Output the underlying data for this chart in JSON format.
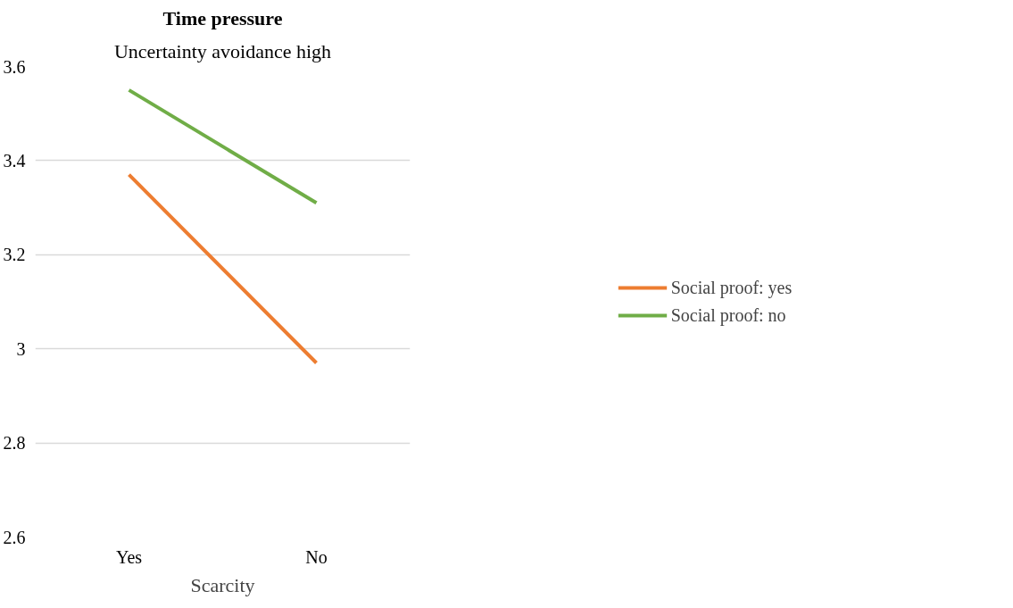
{
  "chart_data": {
    "type": "line",
    "title": "Time pressure",
    "subtitle": "Uncertainty avoidance high",
    "xlabel": "Scarcity",
    "categories": [
      "Yes",
      "No"
    ],
    "series": [
      {
        "name": "Social proof: yes",
        "color": "#ed7d31",
        "values": [
          3.37,
          2.97
        ]
      },
      {
        "name": "Social proof: no",
        "color": "#70ad47",
        "values": [
          3.55,
          3.31
        ]
      }
    ],
    "ylim": [
      2.6,
      3.6
    ],
    "yticks": [
      2.6,
      2.8,
      3,
      3.2,
      3.4,
      3.6
    ],
    "grid": "y",
    "legend": "right",
    "marker": "none",
    "line_style": "solid"
  }
}
